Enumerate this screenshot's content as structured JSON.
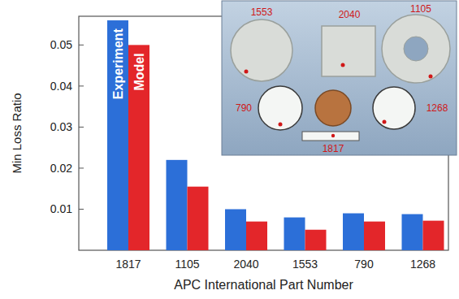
{
  "chart_data": {
    "type": "bar",
    "x_label": "APC International Part Number",
    "y_label": "Min Loss Ratio",
    "categories": [
      "1817",
      "1105",
      "2040",
      "1553",
      "790",
      "1268"
    ],
    "series": [
      {
        "name": "Experiment",
        "color": "#2c6fd8",
        "values": [
          0.056,
          0.022,
          0.01,
          0.008,
          0.009,
          0.0088
        ]
      },
      {
        "name": "Model",
        "color": "#e3262a",
        "values": [
          0.05,
          0.0155,
          0.007,
          0.005,
          0.007,
          0.0072
        ]
      }
    ],
    "ylim": [
      0,
      0.057
    ],
    "yticks": [
      0.01,
      0.02,
      0.03,
      0.04,
      0.05
    ],
    "grid": false,
    "annotations": [
      "1553",
      "2040",
      "1105",
      "790",
      "1268",
      "1817"
    ]
  }
}
